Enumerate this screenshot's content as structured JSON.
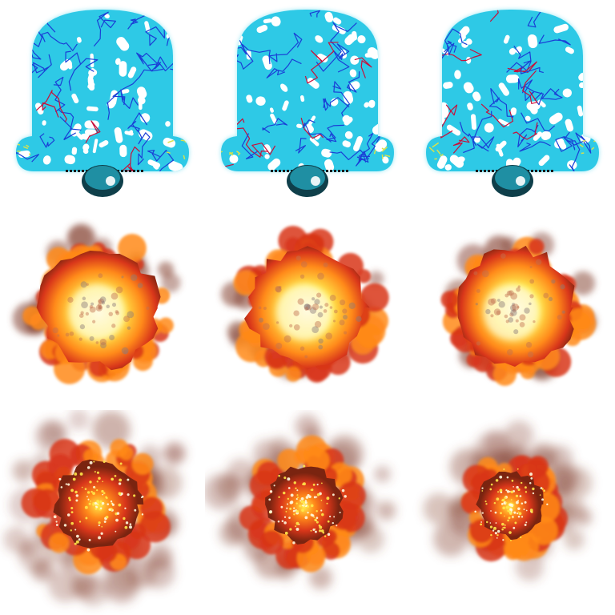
{
  "sheet": {
    "rows": 3,
    "columns": 3,
    "background": "#ffffff"
  },
  "palette": {
    "shield_fill": "#2ec9e6",
    "shield_glow": "#7fe3f3",
    "shield_base": "#1f8fa3",
    "shield_base_dark": "#0f3f4a",
    "crack_blue": "#1a3fd6",
    "crack_red": "#c8103a",
    "crack_yellow": "#d9e24a",
    "highlight": "#ffffff",
    "fire_core": "#fffbe0",
    "fire_yellow": "#ffe84a",
    "fire_orange": "#ff8a1a",
    "fire_red": "#d8361a",
    "fire_dark": "#7a2410",
    "smoke": "#8a4a3a"
  },
  "frames": [
    {
      "row": 0,
      "col": 0,
      "kind": "shield",
      "variant": 1
    },
    {
      "row": 0,
      "col": 1,
      "kind": "shield",
      "variant": 2
    },
    {
      "row": 0,
      "col": 2,
      "kind": "shield",
      "variant": 3
    },
    {
      "row": 1,
      "col": 0,
      "kind": "fireball",
      "variant": 1
    },
    {
      "row": 1,
      "col": 1,
      "kind": "fireball",
      "variant": 2
    },
    {
      "row": 1,
      "col": 2,
      "kind": "fireball",
      "variant": 3
    },
    {
      "row": 2,
      "col": 0,
      "kind": "smoke-fire",
      "variant": 1
    },
    {
      "row": 2,
      "col": 1,
      "kind": "smoke-fire",
      "variant": 2
    },
    {
      "row": 2,
      "col": 2,
      "kind": "smoke-fire",
      "variant": 3
    }
  ]
}
